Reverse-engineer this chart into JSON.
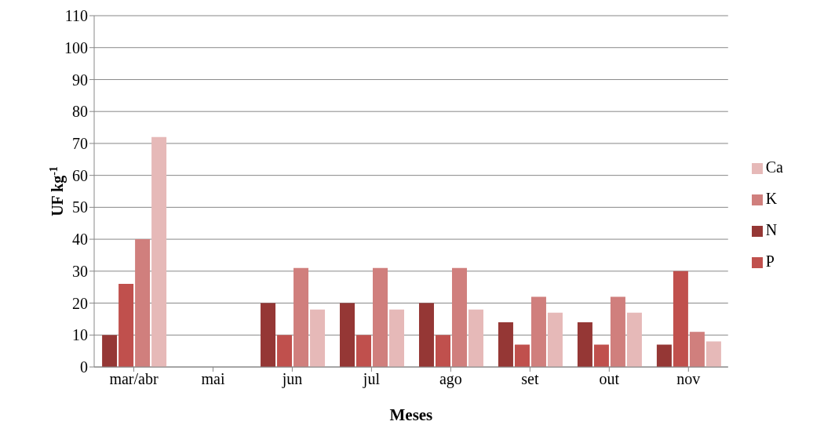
{
  "chart_data": {
    "type": "bar",
    "xlabel": "Meses",
    "ylabel": "UF kg$^{-1}$",
    "categories": [
      "mar/abr",
      "mai",
      "jun",
      "jul",
      "ago",
      "set",
      "out",
      "nov"
    ],
    "series": [
      {
        "name": "N",
        "color": "#953735",
        "values": [
          10,
          null,
          20,
          20,
          20,
          14,
          14,
          7
        ]
      },
      {
        "name": "P",
        "color": "#c0504d",
        "values": [
          26,
          null,
          10,
          10,
          10,
          7,
          7,
          30
        ]
      },
      {
        "name": "K",
        "color": "#d07f7d",
        "values": [
          40,
          null,
          31,
          31,
          31,
          22,
          22,
          11
        ]
      },
      {
        "name": "Ca",
        "color": "#e6b9b8",
        "values": [
          72,
          null,
          18,
          18,
          18,
          17,
          17,
          8
        ]
      }
    ],
    "ylim": [
      0,
      110
    ],
    "yticks": [
      0,
      10,
      20,
      30,
      40,
      50,
      60,
      70,
      80,
      90,
      100,
      110
    ],
    "grid": "y",
    "legend": "right"
  }
}
